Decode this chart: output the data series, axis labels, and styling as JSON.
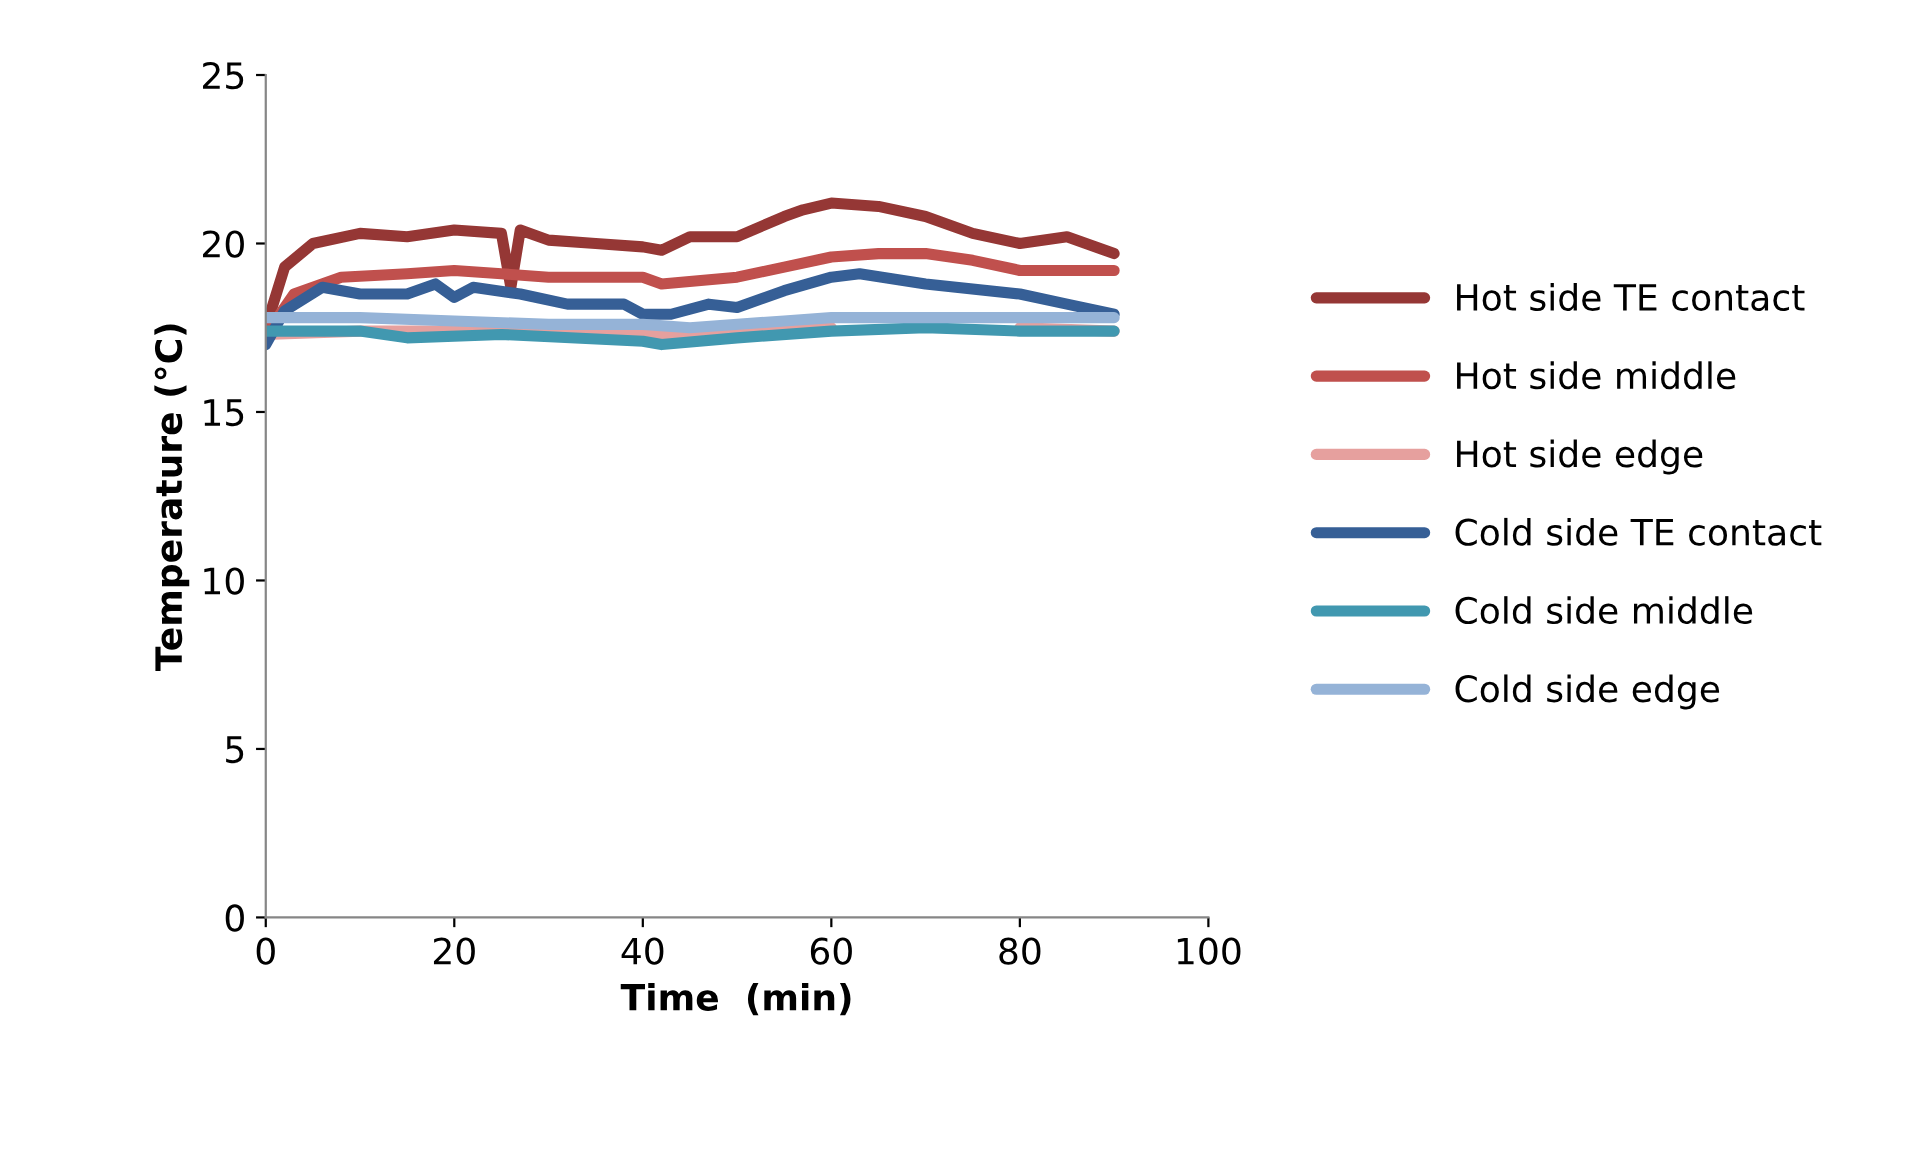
{
  "chart_data": {
    "type": "line",
    "xlabel": "Time  (min)",
    "ylabel": "Temperature (°C)",
    "xlim": [
      0,
      100
    ],
    "xticks": [
      0,
      20,
      40,
      60,
      80,
      100
    ],
    "ylim": [
      0,
      25
    ],
    "yticks": [
      0,
      5,
      10,
      15,
      20,
      25
    ],
    "grid": false,
    "legend": "right",
    "marker": "none",
    "line_style": "solid",
    "series": [
      {
        "name": "Hot side TE contact",
        "color": "#953735",
        "x": [
          0,
          2,
          5,
          10,
          15,
          20,
          25,
          26,
          27,
          30,
          35,
          40,
          42,
          45,
          50,
          55,
          57,
          60,
          65,
          70,
          75,
          80,
          85,
          90
        ],
        "values": [
          17.5,
          19.3,
          20.0,
          20.3,
          20.2,
          20.4,
          20.3,
          18.7,
          20.4,
          20.1,
          20.0,
          19.9,
          19.8,
          20.2,
          20.2,
          20.8,
          21.0,
          21.2,
          21.1,
          20.8,
          20.3,
          20.0,
          20.2,
          19.7
        ]
      },
      {
        "name": "Hot side middle",
        "color": "#c0504d",
        "x": [
          0,
          3,
          8,
          15,
          20,
          25,
          30,
          40,
          42,
          50,
          55,
          60,
          65,
          70,
          75,
          80,
          90
        ],
        "values": [
          17.3,
          18.5,
          19.0,
          19.1,
          19.2,
          19.1,
          19.0,
          19.0,
          18.8,
          19.0,
          19.3,
          19.6,
          19.7,
          19.7,
          19.5,
          19.2,
          19.2
        ]
      },
      {
        "name": "Hot side edge",
        "color": "#e6a09e",
        "x": [
          0,
          10,
          20,
          30,
          40,
          50,
          60,
          70,
          80,
          90
        ],
        "values": [
          17.3,
          17.4,
          17.4,
          17.4,
          17.3,
          17.4,
          17.5,
          null,
          17.5,
          17.4
        ]
      },
      {
        "name": "Cold side TE contact",
        "color": "#365f96",
        "x": [
          0,
          2,
          6,
          10,
          15,
          18,
          20,
          22,
          27,
          32,
          38,
          40,
          43,
          47,
          50,
          55,
          60,
          63,
          70,
          80,
          85,
          90
        ],
        "values": [
          17.0,
          18.0,
          18.7,
          18.5,
          18.5,
          18.8,
          18.4,
          18.7,
          18.5,
          18.2,
          18.2,
          17.9,
          17.9,
          18.2,
          18.1,
          18.6,
          19.0,
          19.1,
          18.8,
          18.5,
          18.2,
          17.9
        ]
      },
      {
        "name": "Cold side middle",
        "color": "#4198b0",
        "x": [
          0,
          10,
          15,
          25,
          40,
          42,
          50,
          60,
          70,
          80,
          90
        ],
        "values": [
          17.4,
          17.4,
          17.2,
          17.3,
          17.1,
          17.0,
          17.2,
          17.4,
          17.5,
          17.4,
          17.4
        ]
      },
      {
        "name": "Cold side edge",
        "color": "#95b3d7",
        "x": [
          0,
          10,
          20,
          30,
          40,
          45,
          55,
          60,
          70,
          80,
          90
        ],
        "values": [
          17.8,
          17.8,
          17.7,
          17.6,
          17.6,
          17.5,
          17.7,
          17.8,
          17.8,
          17.8,
          17.8
        ]
      }
    ]
  }
}
